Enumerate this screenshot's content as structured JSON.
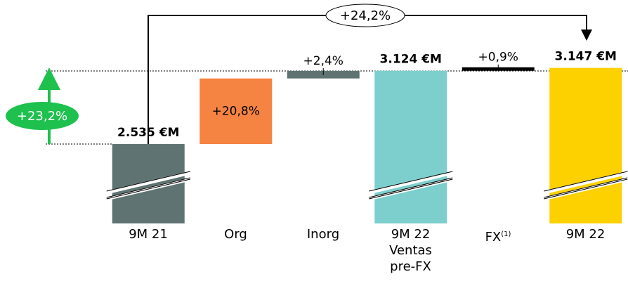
{
  "chart_data": {
    "type": "waterfall",
    "categories": [
      "9M 21",
      "Org",
      "Inorg",
      "9M 22\nVentas\npre-FX",
      "FX",
      "9M 22"
    ],
    "category_note": "(1)",
    "values": [
      2535,
      null,
      null,
      3124,
      null,
      3147
    ],
    "value_labels": [
      "2.535 €M",
      null,
      null,
      "3.124 €M",
      null,
      "3.147 €M"
    ],
    "changes": [
      null,
      20.8,
      2.4,
      null,
      0.9,
      null
    ],
    "change_labels": [
      null,
      "+20,8%",
      "+2,4%",
      null,
      "+0,9%",
      null
    ],
    "colors": [
      "#5f7472",
      "#f58442",
      "#5f7472",
      "#7ccfcd",
      "#000000",
      "#fdd000"
    ],
    "ylim": [
      1897,
      3354
    ],
    "annotations": {
      "total_growth": "+24,2%",
      "pre_fx_growth": "+23,2%"
    }
  }
}
